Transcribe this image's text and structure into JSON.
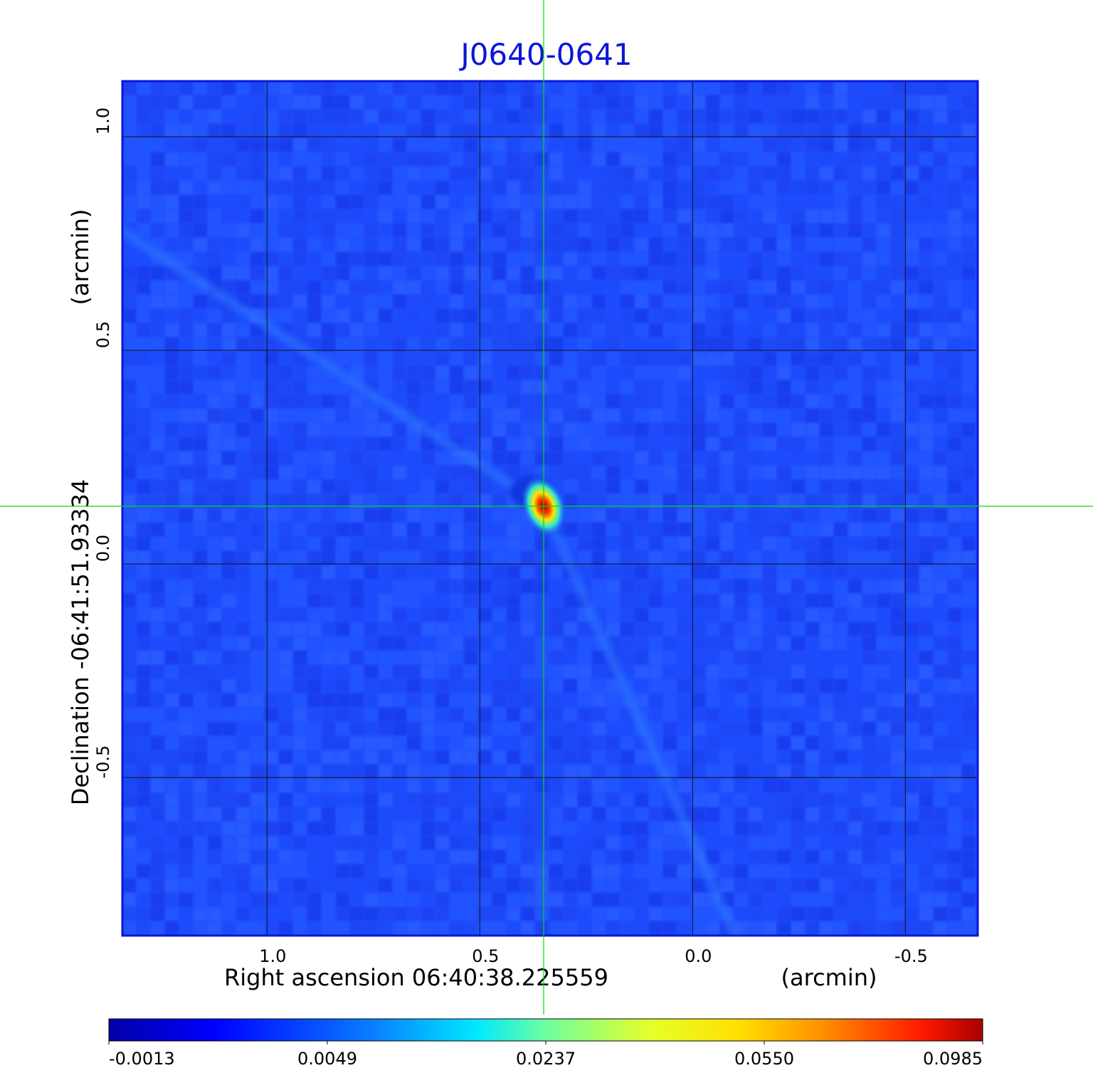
{
  "chart_data": {
    "type": "heatmap",
    "title": "J0640-0641",
    "xlabel": "Right ascension  06:40:38.225559",
    "xunit": "(arcmin)",
    "ylabel": "Declination  -06:41:51.93334",
    "yunit": "(arcmin)",
    "x_ticks": [
      1.0,
      0.5,
      0.0,
      -0.5
    ],
    "x_tick_labels": [
      "1.0",
      "0.5",
      "0.0",
      "-0.5"
    ],
    "y_ticks": [
      1.0,
      0.5,
      0.0,
      -0.5
    ],
    "y_tick_labels": [
      "1.0",
      "0.5",
      "0.0",
      "-0.5"
    ],
    "xlim": [
      1.34,
      -0.67
    ],
    "ylim": [
      -0.87,
      1.13
    ],
    "grid": true,
    "crosshair": {
      "x": 0.35,
      "y": 0.135,
      "color": "#00e000"
    },
    "source": {
      "x": 0.35,
      "y": 0.135,
      "peak": 0.0985
    },
    "colorbar": {
      "colormap": "jet",
      "tick_values": [
        "-0.0013",
        "0.0049",
        "0.0237",
        "0.0550",
        "0.0985"
      ],
      "range": [
        -0.0013,
        0.0985
      ]
    }
  }
}
